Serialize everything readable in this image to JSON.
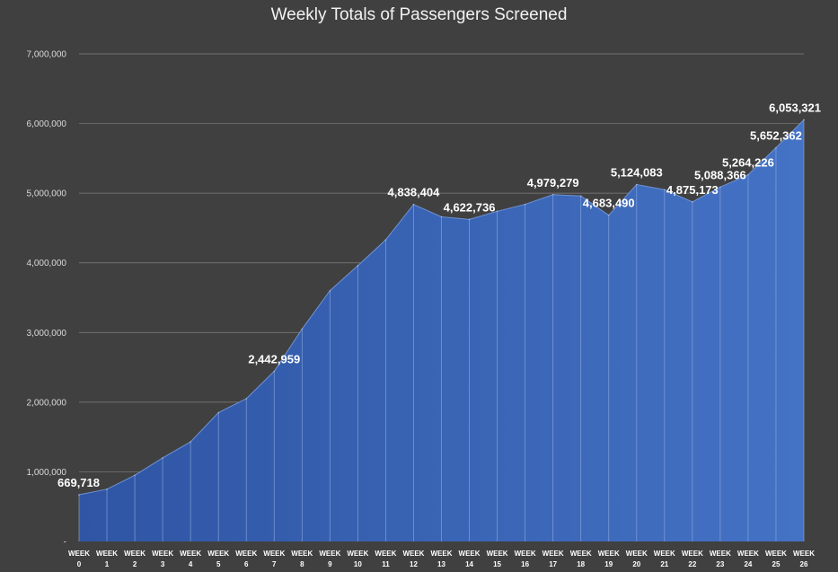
{
  "chart_data": {
    "type": "area",
    "title": "Weekly Totals of Passengers Screened",
    "xlabel": "",
    "ylabel": "",
    "ylim": [
      0,
      7000000
    ],
    "y_ticks": [
      "-",
      "1,000,000",
      "2,000,000",
      "3,000,000",
      "4,000,000",
      "5,000,000",
      "6,000,000",
      "7,000,000"
    ],
    "grid": true,
    "legend": "none",
    "categories": [
      [
        "WEEK",
        "0"
      ],
      [
        "WEEK",
        "1"
      ],
      [
        "WEEK",
        "2"
      ],
      [
        "WEEK",
        "3"
      ],
      [
        "WEEK",
        "4"
      ],
      [
        "WEEK",
        "5"
      ],
      [
        "WEEK",
        "6"
      ],
      [
        "WEEK",
        "7"
      ],
      [
        "WEEK",
        "8"
      ],
      [
        "WEEK",
        "9"
      ],
      [
        "WEEK",
        "10"
      ],
      [
        "WEEK",
        "11"
      ],
      [
        "WEEK",
        "12"
      ],
      [
        "WEEK",
        "13"
      ],
      [
        "WEEK",
        "14"
      ],
      [
        "WEEK",
        "15"
      ],
      [
        "WEEK",
        "16"
      ],
      [
        "WEEK",
        "17"
      ],
      [
        "WEEK",
        "18"
      ],
      [
        "WEEK",
        "19"
      ],
      [
        "WEEK",
        "20"
      ],
      [
        "WEEK",
        "21"
      ],
      [
        "WEEK",
        "22"
      ],
      [
        "WEEK",
        "23"
      ],
      [
        "WEEK",
        "24"
      ],
      [
        "WEEK",
        "25"
      ],
      [
        "WEEK",
        "26"
      ]
    ],
    "values": [
      669718,
      750000,
      950000,
      1200000,
      1430000,
      1850000,
      2050000,
      2442959,
      3050000,
      3600000,
      3960000,
      4330000,
      4838404,
      4660000,
      4622736,
      4740000,
      4840000,
      4979279,
      4960000,
      4683490,
      5124083,
      5050000,
      4875173,
      5088366,
      5264226,
      5652362,
      6053321
    ],
    "data_labels": [
      {
        "index": 0,
        "text": "669,718"
      },
      {
        "index": 7,
        "text": "2,442,959"
      },
      {
        "index": 12,
        "text": "4,838,404"
      },
      {
        "index": 14,
        "text": "4,622,736"
      },
      {
        "index": 17,
        "text": "4,979,279"
      },
      {
        "index": 19,
        "text": "4,683,490"
      },
      {
        "index": 20,
        "text": "5,124,083"
      },
      {
        "index": 22,
        "text": "4,875,173"
      },
      {
        "index": 23,
        "text": "5,088,366"
      },
      {
        "index": 24,
        "text": "5,264,226"
      },
      {
        "index": 25,
        "text": "5,652,362"
      },
      {
        "index": 26,
        "text": "6,053,321"
      }
    ],
    "colors": {
      "background": "#404040",
      "area_top": "#4472c4",
      "area_bottom": "#2f55a4",
      "grid": "#7f7f7f",
      "drop_line": "#8faadc"
    }
  }
}
